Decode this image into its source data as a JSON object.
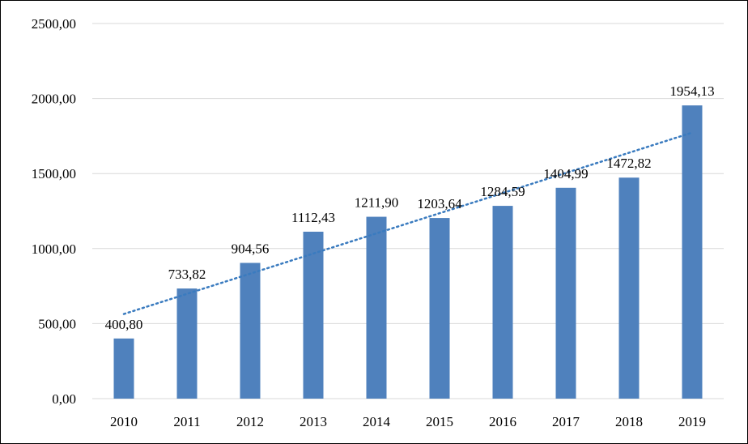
{
  "chart_data": {
    "type": "bar",
    "categories": [
      "2010",
      "2011",
      "2012",
      "2013",
      "2014",
      "2015",
      "2016",
      "2017",
      "2018",
      "2019"
    ],
    "values": [
      400.8,
      733.82,
      904.56,
      1112.43,
      1211.9,
      1203.64,
      1284.59,
      1404.99,
      1472.82,
      1954.13
    ],
    "value_labels": [
      "400,80",
      "733,82",
      "904,56",
      "1112,43",
      "1211,90",
      "1203,64",
      "1284,59",
      "1404,99",
      "1472,82",
      "1954,13"
    ],
    "y_ticks": [
      0,
      500,
      1000,
      1500,
      2000,
      2500
    ],
    "y_tick_labels": [
      "0,00",
      "500,00",
      "1000,00",
      "1500,00",
      "2000,00",
      "2500,00"
    ],
    "ylim": [
      0,
      2500
    ],
    "grid": true,
    "trendline": "linear",
    "legend": "none",
    "title": "",
    "xlabel": "",
    "ylabel": "",
    "colors": {
      "bar": "#4f81bd",
      "trendline": "#3a7bbf",
      "grid": "#d9d9d9"
    }
  }
}
